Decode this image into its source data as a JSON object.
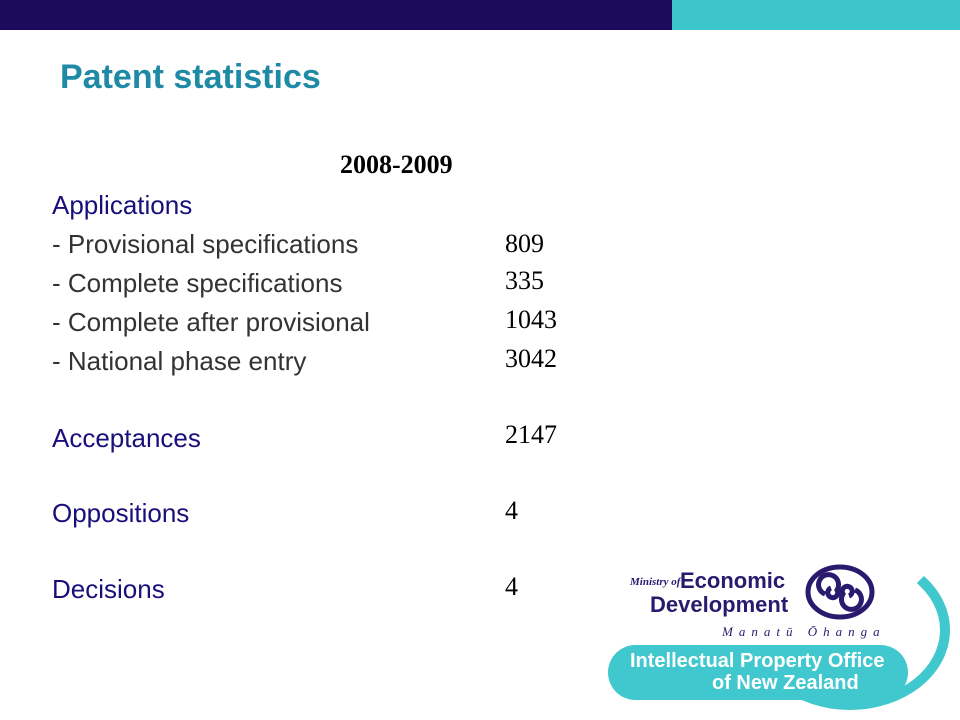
{
  "slide": {
    "title": "Patent statistics",
    "period": "2008-2009",
    "rows": [
      {
        "label": "Applications",
        "value": ""
      },
      {
        "label": "- Provisional specifications",
        "value": "809"
      },
      {
        "label": "- Complete specifications",
        "value": "335"
      },
      {
        "label": "- Complete after provisional",
        "value": "1043"
      },
      {
        "label": "- National phase entry",
        "value": "3042"
      },
      {
        "label": "Acceptances",
        "value": "2147"
      },
      {
        "label": "Oppositions",
        "value": "4"
      },
      {
        "label": "Decisions",
        "value": "4"
      }
    ]
  },
  "logo": {
    "ministry_of": "Ministry of",
    "economic": "Economic",
    "development": "Development",
    "manatu": "Manatū Ōhanga",
    "ipo_line1": "Intellectual Property Office",
    "ipo_line2": "of New Zealand"
  },
  "colors": {
    "navy": "#1c0a5c",
    "teal": "#3cc6cc",
    "title": "#1f8aa6",
    "label_blue": "#1a0e7a"
  }
}
